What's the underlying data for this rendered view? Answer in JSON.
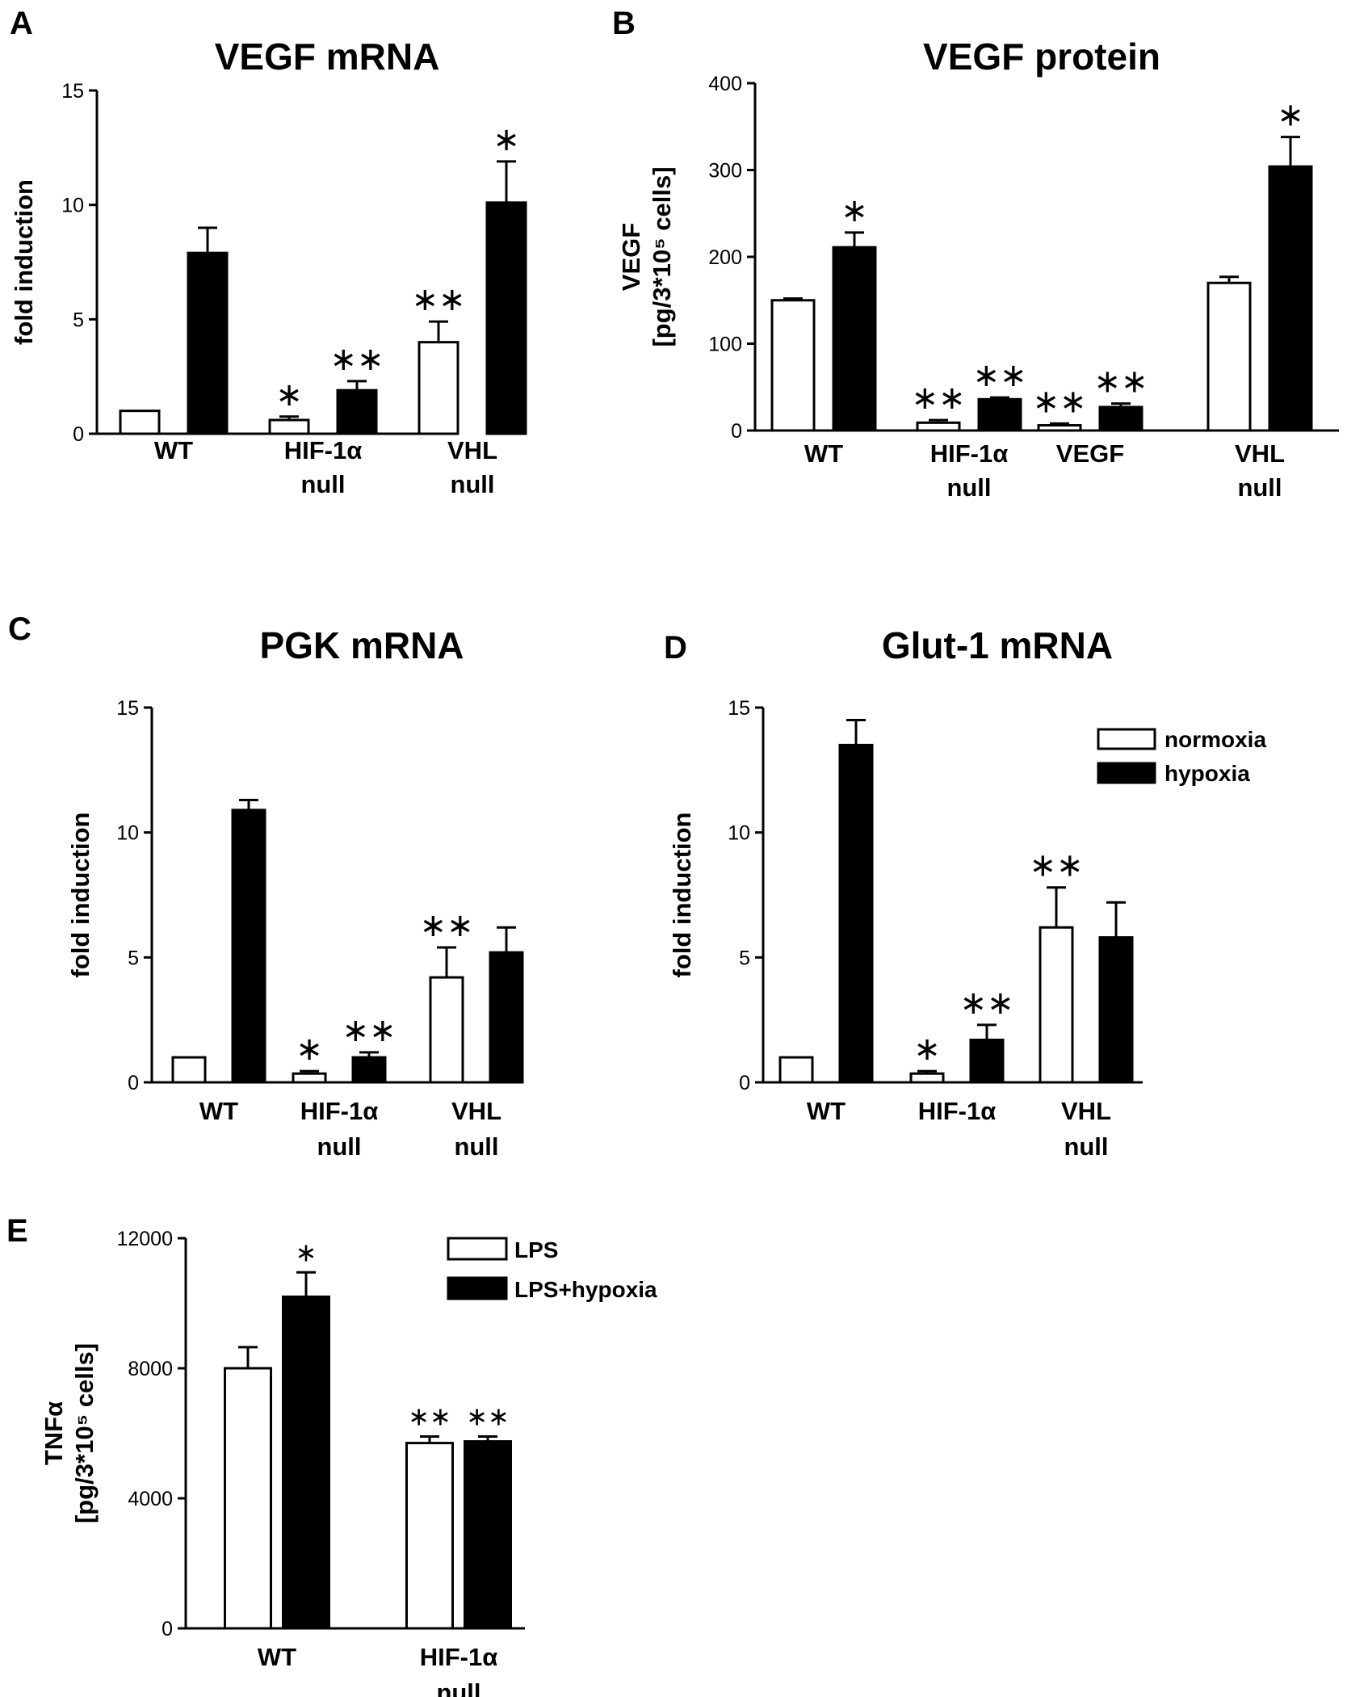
{
  "colors": {
    "normal_fill": "#ffffff",
    "hypoxia_fill": "#000000",
    "stroke": "#000000"
  },
  "chart_data": [
    {
      "type": "bar",
      "panel": "A",
      "title": "VEGF mRNA",
      "ylabel": "fold induction",
      "ylim": [
        0,
        15
      ],
      "yticks": [
        "0",
        "5",
        "10",
        "15"
      ],
      "categories": [
        [
          "WT"
        ],
        [
          "HIF-1α",
          "null"
        ],
        [
          "VHL",
          "null"
        ]
      ],
      "series": [
        {
          "values": [
            1.0,
            0.6,
            4.0
          ],
          "errors": [
            0,
            0.15,
            0.9
          ],
          "marks": [
            "",
            "*",
            "**"
          ]
        },
        {
          "values": [
            7.9,
            1.9,
            10.1
          ],
          "errors": [
            1.1,
            0.4,
            1.8
          ],
          "marks": [
            "",
            "**",
            "*"
          ]
        }
      ]
    },
    {
      "type": "bar",
      "panel": "B",
      "title": "VEGF protein",
      "ylabel": [
        "VEGF",
        "[pg/3*10⁵ cells]"
      ],
      "ylim": [
        0,
        400
      ],
      "yticks": [
        "0",
        "100",
        "200",
        "300",
        "400"
      ],
      "categories": [
        [
          "WT"
        ],
        [
          "HIF-1α",
          "null"
        ],
        [
          "VEGF"
        ],
        [
          "VHL",
          "null"
        ]
      ],
      "series": [
        {
          "values": [
            150,
            9,
            6,
            170
          ],
          "errors": [
            2,
            3,
            2,
            7
          ],
          "marks": [
            "",
            "**",
            "**",
            ""
          ]
        },
        {
          "values": [
            211,
            36,
            27,
            304
          ],
          "errors": [
            17,
            2,
            4,
            34
          ],
          "marks": [
            "*",
            "**",
            "**",
            "*"
          ]
        }
      ]
    },
    {
      "type": "bar",
      "panel": "C",
      "title": "PGK mRNA",
      "ylabel": "fold induction",
      "ylim": [
        0,
        15
      ],
      "yticks": [
        "0",
        "5",
        "10",
        "15"
      ],
      "categories": [
        [
          "WT"
        ],
        [
          "HIF-1α",
          "null"
        ],
        [
          "VHL",
          "null"
        ]
      ],
      "series": [
        {
          "values": [
            1.0,
            0.35,
            4.2
          ],
          "errors": [
            0,
            0.1,
            1.2
          ],
          "marks": [
            "",
            "*",
            "**"
          ]
        },
        {
          "values": [
            10.9,
            1.0,
            5.2
          ],
          "errors": [
            0.4,
            0.2,
            1.0
          ],
          "marks": [
            "",
            "**",
            ""
          ]
        }
      ]
    },
    {
      "type": "bar",
      "panel": "D",
      "title": "Glut-1 mRNA",
      "ylabel": "fold induction",
      "ylim": [
        0,
        15
      ],
      "yticks": [
        "0",
        "5",
        "10",
        "15"
      ],
      "categories": [
        [
          "WT"
        ],
        [
          "HIF-1α"
        ],
        [
          "VHL",
          "null"
        ]
      ],
      "series": [
        {
          "name": "normoxia",
          "values": [
            1.0,
            0.35,
            6.2
          ],
          "errors": [
            0,
            0.1,
            1.6
          ],
          "marks": [
            "",
            "*",
            "**"
          ]
        },
        {
          "name": "hypoxia",
          "values": [
            13.5,
            1.7,
            5.8
          ],
          "errors": [
            1.0,
            0.6,
            1.4
          ],
          "marks": [
            "",
            "**",
            ""
          ]
        }
      ],
      "legend": "top-right"
    },
    {
      "type": "bar",
      "panel": "E",
      "title": "",
      "ylabel": [
        "TNFα",
        "[pg/3*10⁵ cells]"
      ],
      "ylim": [
        0,
        12000
      ],
      "yticks": [
        "0",
        "4000",
        "8000",
        "12000"
      ],
      "categories": [
        [
          "WT"
        ],
        [
          "HIF-1α",
          "null"
        ]
      ],
      "series": [
        {
          "name": "LPS",
          "values": [
            8000,
            5700
          ],
          "errors": [
            650,
            200
          ],
          "marks": [
            "",
            "**"
          ]
        },
        {
          "name": "LPS+hypoxia",
          "values": [
            10200,
            5750
          ],
          "errors": [
            750,
            150
          ],
          "marks": [
            "*",
            "**"
          ]
        }
      ],
      "legend": "top-right"
    }
  ]
}
